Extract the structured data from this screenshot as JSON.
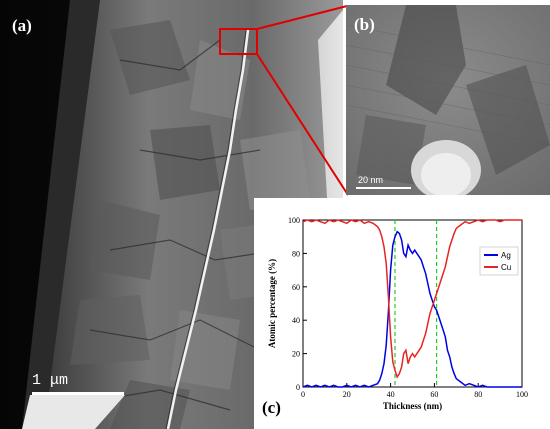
{
  "panels": {
    "a": {
      "label": "(a)",
      "scale_bar": "1 μm"
    },
    "b": {
      "label": "(b)",
      "scale_bar": "20 nm"
    },
    "c": {
      "label": "(c)"
    }
  },
  "colors": {
    "ag": "#0000e6",
    "cu": "#e62424",
    "guide": "#22cc22",
    "roi": "#e00000"
  },
  "chart_data": {
    "type": "line",
    "xlabel": "Thickness (nm)",
    "ylabel": "Atomic percentage (%)",
    "xlim": [
      0,
      100
    ],
    "ylim": [
      0,
      100
    ],
    "xticks": [
      "0",
      "20",
      "40",
      "60",
      "80",
      "100"
    ],
    "yticks": [
      "0",
      "20",
      "40",
      "60",
      "80",
      "100"
    ],
    "legend_position": "right",
    "vertical_guides": [
      42,
      61
    ],
    "series": [
      {
        "name": "Ag",
        "color": "#0000e6",
        "x": [
          0,
          2,
          4,
          6,
          8,
          10,
          12,
          14,
          16,
          18,
          20,
          22,
          24,
          26,
          28,
          30,
          32,
          34,
          35,
          36,
          37,
          38,
          39,
          40,
          41,
          42,
          43,
          44,
          45,
          46,
          47,
          48,
          49,
          50,
          51,
          52,
          53,
          54,
          55,
          56,
          57,
          58,
          59,
          60,
          61,
          62,
          63,
          64,
          65,
          66,
          67,
          68,
          69,
          70,
          72,
          74,
          76,
          78,
          80,
          82,
          84,
          86,
          88,
          90,
          92,
          94,
          96,
          98,
          100
        ],
        "y": [
          0,
          1,
          0,
          1,
          0,
          1,
          0,
          1,
          0,
          0,
          1,
          0,
          1,
          0,
          1,
          0,
          1,
          2,
          4,
          8,
          14,
          25,
          45,
          70,
          85,
          90,
          93,
          92,
          88,
          80,
          78,
          85,
          82,
          80,
          82,
          80,
          78,
          76,
          72,
          68,
          62,
          56,
          52,
          48,
          46,
          42,
          38,
          34,
          30,
          22,
          18,
          12,
          8,
          5,
          3,
          1,
          2,
          1,
          0,
          1,
          0,
          0,
          0,
          0,
          0,
          0,
          0,
          0,
          0
        ]
      },
      {
        "name": "Cu",
        "color": "#e62424",
        "x": [
          0,
          2,
          4,
          6,
          8,
          10,
          12,
          14,
          16,
          18,
          20,
          22,
          24,
          26,
          28,
          30,
          32,
          34,
          35,
          36,
          37,
          38,
          39,
          40,
          41,
          42,
          43,
          44,
          45,
          46,
          47,
          48,
          49,
          50,
          51,
          52,
          53,
          54,
          55,
          56,
          57,
          58,
          59,
          60,
          61,
          62,
          63,
          64,
          65,
          66,
          67,
          68,
          69,
          70,
          72,
          74,
          76,
          78,
          80,
          82,
          84,
          86,
          88,
          90,
          92,
          94,
          96,
          98,
          100
        ],
        "y": [
          99,
          100,
          99,
          100,
          99,
          98,
          100,
          99,
          100,
          99,
          98,
          100,
          99,
          100,
          98,
          99,
          98,
          96,
          94,
          90,
          84,
          74,
          54,
          30,
          15,
          10,
          6,
          8,
          12,
          20,
          22,
          14,
          18,
          20,
          18,
          20,
          22,
          24,
          28,
          32,
          38,
          44,
          48,
          52,
          56,
          60,
          64,
          68,
          72,
          78,
          84,
          88,
          92,
          95,
          97,
          99,
          98,
          99,
          100,
          99,
          100,
          100,
          100,
          99,
          100,
          100,
          100,
          100,
          100
        ]
      }
    ]
  }
}
